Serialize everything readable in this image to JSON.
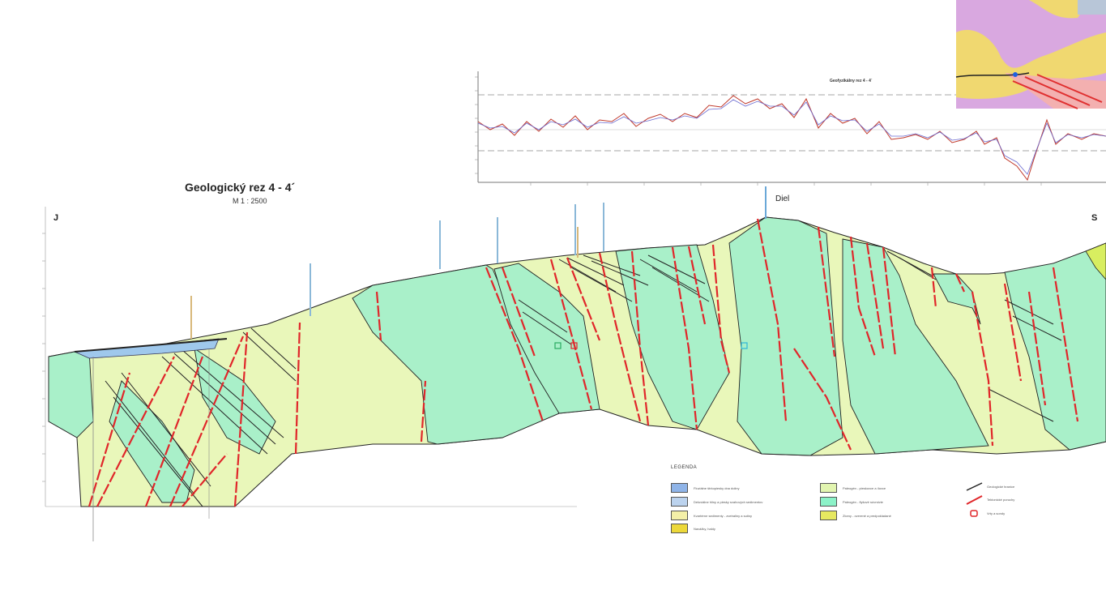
{
  "section": {
    "title": "Geologický rez 4 - 4´",
    "scale": "M 1 : 2500",
    "left_end": "J",
    "right_end": "S",
    "peak_label": "Diel"
  },
  "profile": {
    "title": "Geofyzikálny rez 4 - 4´"
  },
  "legend": {
    "title": "LEGENDA",
    "items": [
      {
        "label": "Fluviálne štrkopiesky dna doliny",
        "color": "#8fb4e8"
      },
      {
        "label": "Deluviálne hliny a piesky svahových sedimentov",
        "color": "#bcd3ee"
      },
      {
        "label": "Kvartérne sedimenty - zvetraliny a sutiny",
        "color": "#f4f0a8"
      },
      {
        "label": "Navážky, haldy",
        "color": "#ecd83a"
      },
      {
        "label": "Paleogén - pieskovce a ílovce",
        "color": "#e2f5b0"
      },
      {
        "label": "Paleogén - flyšové súvrstvie",
        "color": "#8cf2c8"
      },
      {
        "label": "Zlomy - overené a predpokladané",
        "color": "#e6e860"
      }
    ],
    "lines": [
      {
        "label": "Geologické hranice"
      },
      {
        "label": "Tektonické poruchy"
      },
      {
        "label": "Vrty a sondy"
      }
    ]
  },
  "colors": {
    "layer_green": "#a9f0c9",
    "layer_yellow": "#e9f7ba",
    "fault_red": "#e0262a",
    "water_blue": "#9fc8ec",
    "profile_red": "#c0392b",
    "profile_blue": "#6a6ad0"
  }
}
